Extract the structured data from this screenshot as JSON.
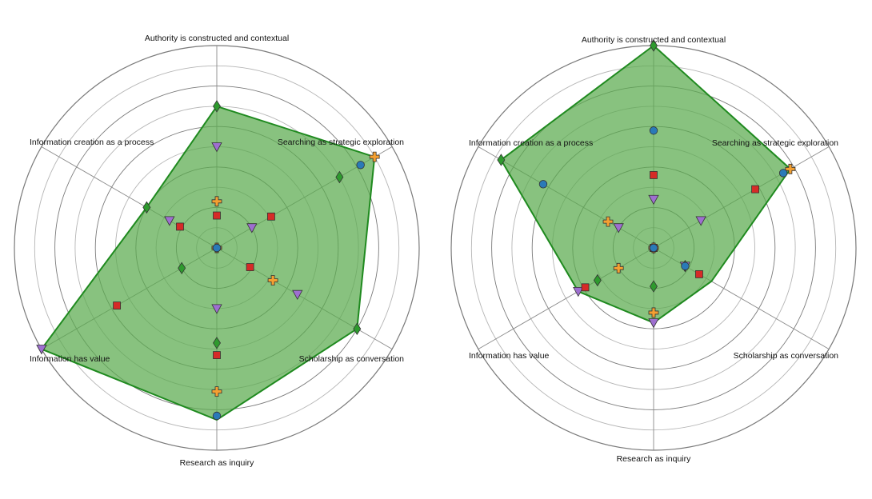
{
  "chart_data": [
    {
      "type": "radar",
      "axes": [
        "Authority is constructed and contextual",
        "Searching as strategic exploration",
        "Scholarship as conversation",
        "Research as inquiry",
        "Information has value",
        "Information creation as a process"
      ],
      "rmax": 10,
      "rings": 10,
      "area": {
        "values": [
          7.0,
          9.0,
          8.0,
          8.5,
          10.0,
          4.0
        ],
        "fill": "#5aab4d",
        "stroke": "#1f8a1f"
      },
      "series": [
        {
          "marker": "diamond",
          "color": "#2e9a2e",
          "values": [
            7.0,
            7.0,
            8.0,
            4.7,
            2.0,
            4.0
          ]
        },
        {
          "marker": "triangle",
          "color": "#9e6fd0",
          "values": [
            5.0,
            2.0,
            4.6,
            3.0,
            10.0,
            2.7
          ]
        },
        {
          "marker": "plus",
          "color": "#f5a031",
          "values": [
            2.3,
            9.0,
            3.2,
            7.1,
            0.0,
            0.0
          ]
        },
        {
          "marker": "square",
          "color": "#d62b27",
          "values": [
            1.6,
            3.1,
            1.9,
            5.3,
            5.7,
            2.1
          ]
        },
        {
          "marker": "circle",
          "color": "#2a7ab8",
          "values": [
            0.0,
            8.2,
            0.0,
            8.3,
            0.0,
            0.0
          ]
        }
      ]
    },
    {
      "type": "radar",
      "axes": [
        "Authority is constructed and contextual",
        "Searching as strategic exploration",
        "Scholarship as conversation",
        "Research as inquiry",
        "Information has value",
        "Information creation as a process"
      ],
      "rmax": 10,
      "rings": 10,
      "area": {
        "values": [
          10.0,
          7.8,
          3.3,
          3.7,
          4.3,
          8.7
        ],
        "fill": "#5aab4d",
        "stroke": "#1f8a1f"
      },
      "series": [
        {
          "marker": "diamond",
          "color": "#2e9a2e",
          "values": [
            10.0,
            0.0,
            1.8,
            1.9,
            3.2,
            8.7
          ]
        },
        {
          "marker": "triangle",
          "color": "#9e6fd0",
          "values": [
            2.4,
            2.7,
            1.8,
            3.7,
            4.3,
            2.0
          ]
        },
        {
          "marker": "plus",
          "color": "#f5a031",
          "values": [
            0.0,
            7.8,
            0.0,
            3.2,
            2.0,
            2.6
          ]
        },
        {
          "marker": "square",
          "color": "#d62b27",
          "values": [
            3.6,
            5.8,
            2.6,
            0.0,
            3.9,
            0.0
          ]
        },
        {
          "marker": "circle",
          "color": "#2a7ab8",
          "values": [
            5.8,
            7.4,
            1.8,
            0.0,
            0.0,
            6.3
          ]
        }
      ]
    }
  ]
}
